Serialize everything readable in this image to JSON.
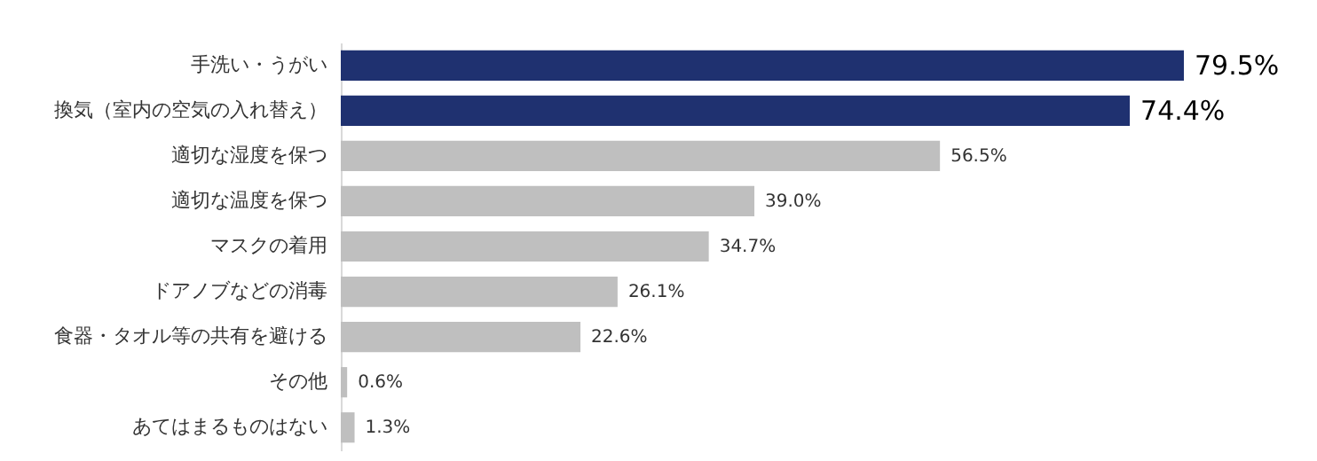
{
  "chart_data": {
    "type": "bar",
    "orientation": "horizontal",
    "categories": [
      "手洗い・うがい",
      "換気（室内の空気の入れ替え）",
      "適切な湿度を保つ",
      "適切な温度を保つ",
      "マスクの着用",
      "ドアノブなどの消毒",
      "食器・タオル等の共有を避ける",
      "その他",
      "あてはまるものはない"
    ],
    "values": [
      79.5,
      74.4,
      56.5,
      39.0,
      34.7,
      26.1,
      22.6,
      0.6,
      1.3
    ],
    "value_labels": [
      "79.5%",
      "74.4%",
      "56.5%",
      "39.0%",
      "34.7%",
      "26.1%",
      "22.6%",
      "0.6%",
      "1.3%"
    ],
    "colors": [
      "#1f3170",
      "#1f3170",
      "#bfbfbf",
      "#bfbfbf",
      "#bfbfbf",
      "#bfbfbf",
      "#bfbfbf",
      "#bfbfbf",
      "#bfbfbf"
    ],
    "tick_labels": "y"
  }
}
